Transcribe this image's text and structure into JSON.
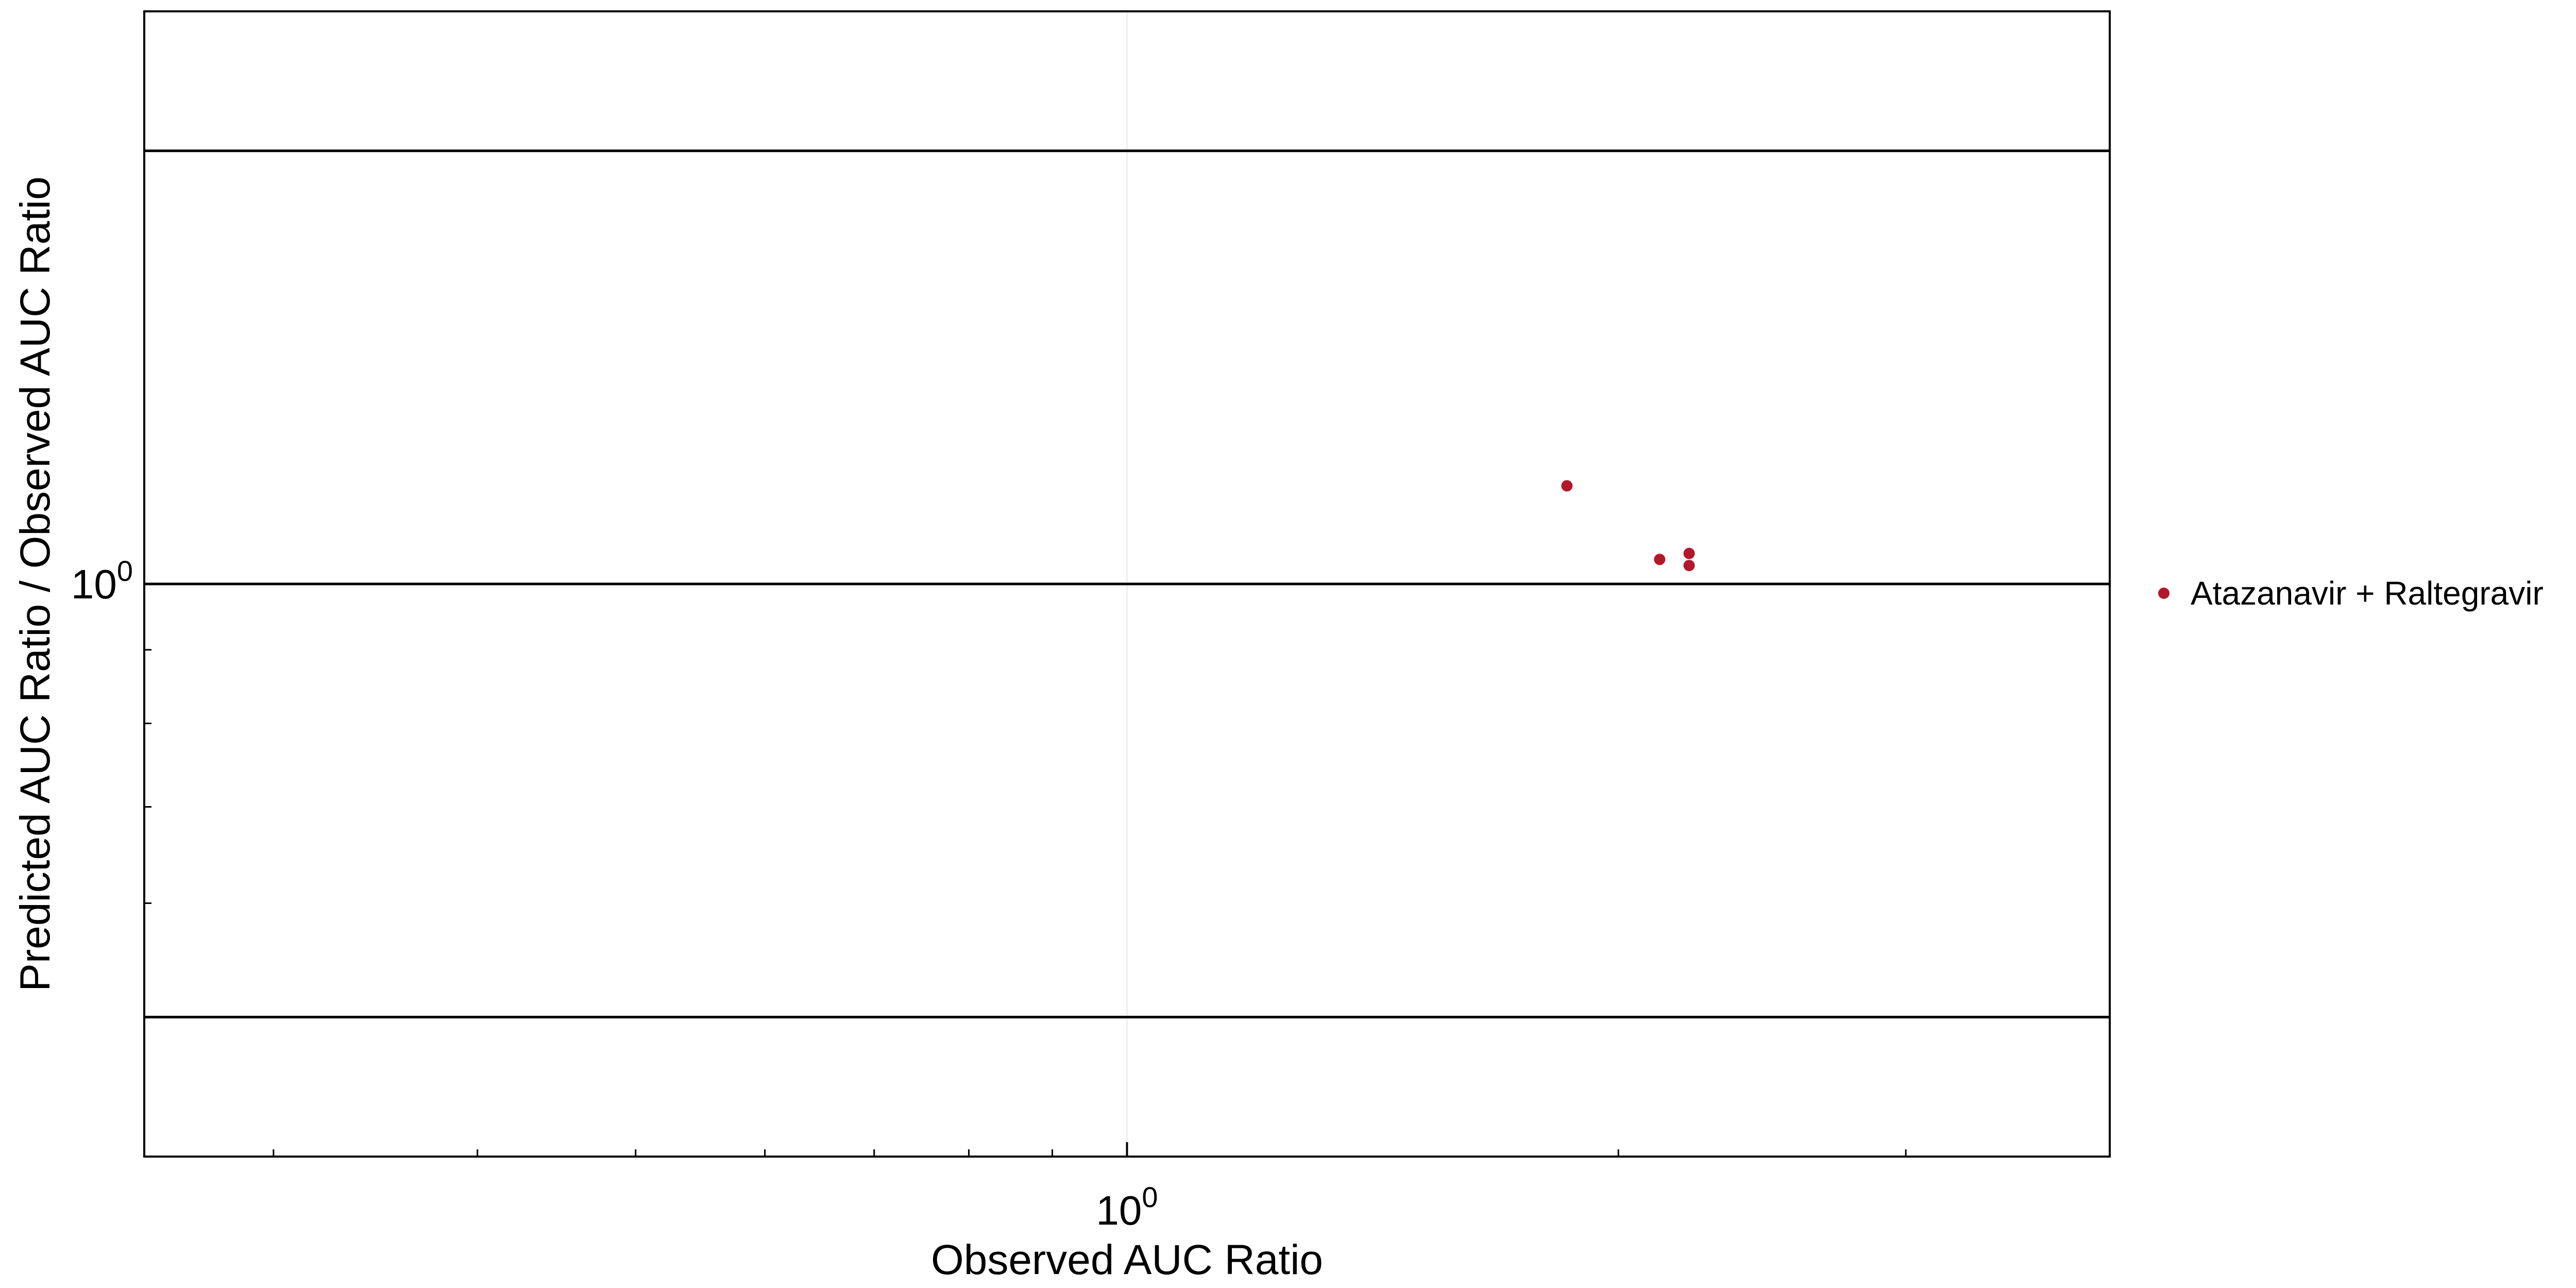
{
  "chart_data": {
    "type": "scatter",
    "title": "",
    "xlabel": "Observed AUC Ratio",
    "ylabel": "Predicted AUC Ratio / Observed AUC Ratio",
    "x_scale": "log",
    "y_scale": "log",
    "xlim": [
      0.25,
      4
    ],
    "ylim": [
      0.4,
      2.5
    ],
    "x_tick_labels": [
      {
        "value": 1,
        "base": "10",
        "exponent": "0"
      }
    ],
    "y_tick_labels": [
      {
        "value": 1,
        "base": "10",
        "exponent": "0"
      }
    ],
    "x_minor_ticks": [
      0.3,
      0.4,
      0.5,
      0.6,
      0.7,
      0.8,
      0.9,
      2,
      3
    ],
    "y_minor_ticks": [
      0.5,
      0.6,
      0.7,
      0.8,
      0.9,
      2
    ],
    "reference_lines": {
      "identity_y": 1,
      "dotted_limits_y": [
        0.5,
        2
      ],
      "guest_limit_delta": 2
    },
    "grid": false,
    "legend_position": "right",
    "series": [
      {
        "name": "Atazanavir + Raltegravir",
        "color": "#b2182b",
        "marker": "circle",
        "points": [
          {
            "x": 1.86,
            "y": 1.17
          },
          {
            "x": 2.12,
            "y": 1.04
          },
          {
            "x": 2.21,
            "y": 1.05
          },
          {
            "x": 2.21,
            "y": 1.03
          }
        ]
      }
    ]
  }
}
